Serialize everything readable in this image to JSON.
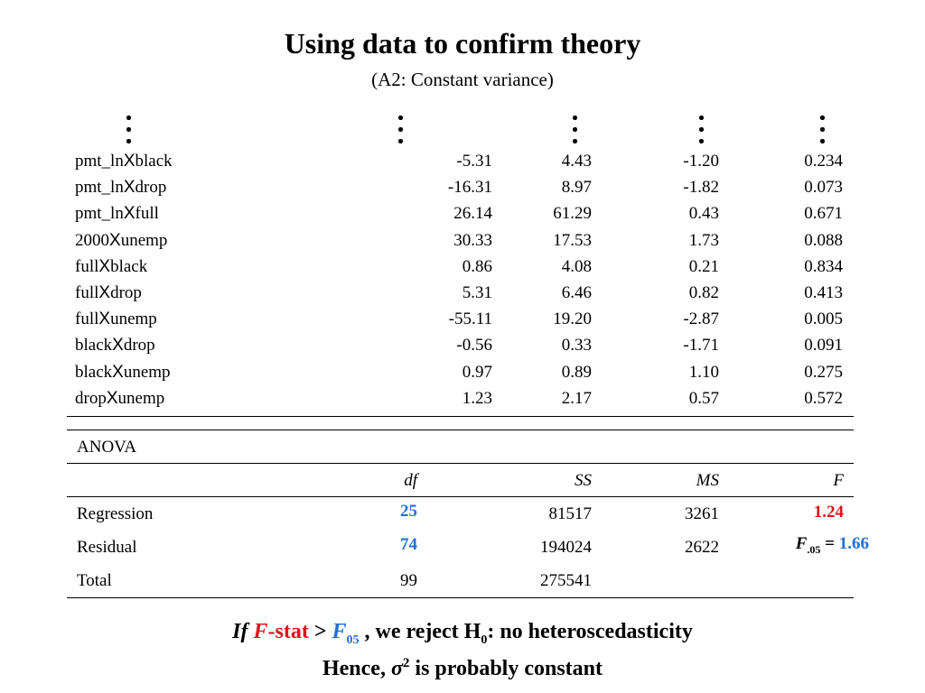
{
  "title": "Using data to confirm theory",
  "subtitle": "(A2: Constant variance)",
  "colors": {
    "highlight_blue": "#1f6fd6",
    "highlight_red": "#e0101e"
  },
  "ellipsis_symbol": "vertical-ellipsis",
  "x_symbol": "X",
  "coefficients": [
    {
      "prefix": "pmt_ln",
      "suffix": "black",
      "c1": "-5.31",
      "c2": "4.43",
      "c3": "-1.20",
      "c4": "0.234"
    },
    {
      "prefix": "pmt_ln",
      "suffix": "drop",
      "c1": "-16.31",
      "c2": "8.97",
      "c3": "-1.82",
      "c4": "0.073"
    },
    {
      "prefix": "pmt_ln",
      "suffix": "full",
      "c1": "26.14",
      "c2": "61.29",
      "c3": "0.43",
      "c4": "0.671"
    },
    {
      "prefix": "2000",
      "suffix": "unemp",
      "c1": "30.33",
      "c2": "17.53",
      "c3": "1.73",
      "c4": "0.088"
    },
    {
      "prefix": "full",
      "suffix": "black",
      "c1": "0.86",
      "c2": "4.08",
      "c3": "0.21",
      "c4": "0.834"
    },
    {
      "prefix": "full",
      "suffix": "drop",
      "c1": "5.31",
      "c2": "6.46",
      "c3": "0.82",
      "c4": "0.413"
    },
    {
      "prefix": "full",
      "suffix": "unemp",
      "c1": "-55.11",
      "c2": "19.20",
      "c3": "-2.87",
      "c4": "0.005"
    },
    {
      "prefix": "black",
      "suffix": "drop",
      "c1": "-0.56",
      "c2": "0.33",
      "c3": "-1.71",
      "c4": "0.091"
    },
    {
      "prefix": "black",
      "suffix": "unemp",
      "c1": "0.97",
      "c2": "0.89",
      "c3": "1.10",
      "c4": "0.275"
    },
    {
      "prefix": "drop",
      "suffix": "unemp",
      "c1": "1.23",
      "c2": "2.17",
      "c3": "0.57",
      "c4": "0.572"
    }
  ],
  "anova": {
    "title": "ANOVA",
    "headers": {
      "df": "df",
      "ss": "SS",
      "ms": "MS",
      "f": "F"
    },
    "regression": {
      "label": "Regression",
      "df": "25",
      "ss": "81517",
      "ms": "3261",
      "f": "1.24"
    },
    "residual": {
      "label": "Residual",
      "df": "74",
      "ss": "194024",
      "ms": "2622"
    },
    "total": {
      "label": "Total",
      "df": "99",
      "ss": "275541"
    },
    "f_critical": {
      "symbol": "F",
      "subscript": ".05",
      "equals": " = ",
      "value": "1.66"
    }
  },
  "conclusion": {
    "line1": {
      "if": "If ",
      "f": "F",
      "stat": "-stat",
      "gt": " > ",
      "f05": "F",
      "f05_sub": "05",
      "rest": " , we reject H",
      "h_sub": "0",
      "tail": ": no heteroscedasticity"
    },
    "line2": {
      "lead": "Hence, ",
      "sigma": "σ",
      "sup": "2",
      "tail": " is probably constant"
    }
  }
}
